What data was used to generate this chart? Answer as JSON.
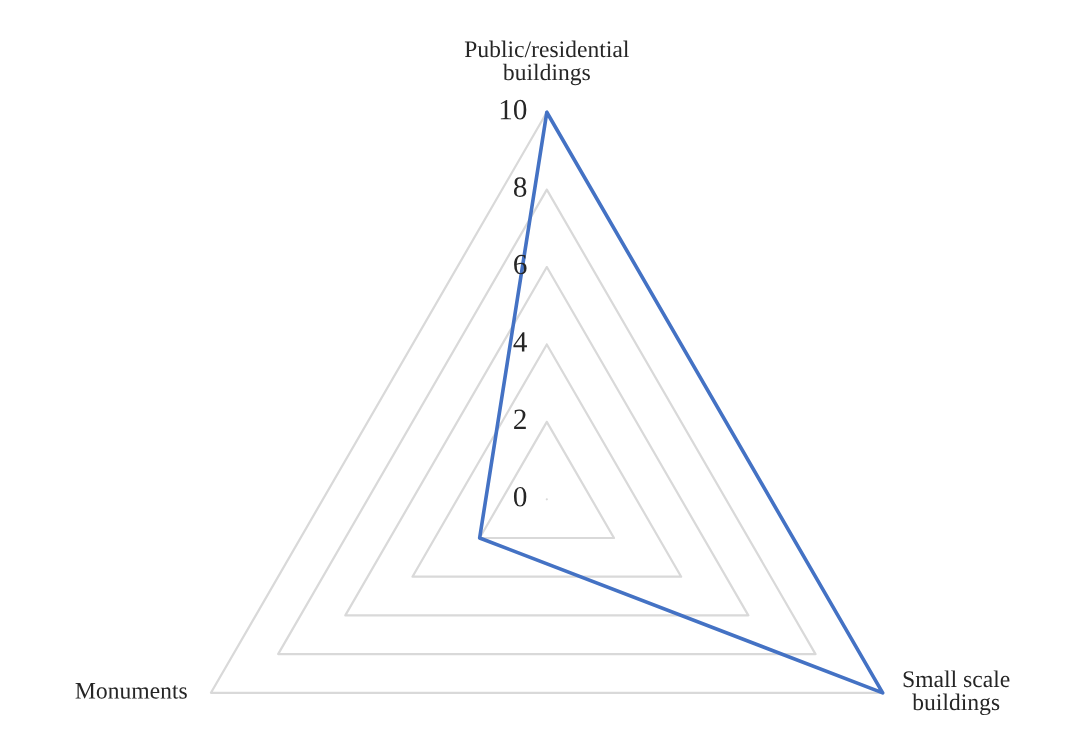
{
  "chart_data": {
    "type": "radar",
    "categories": [
      "Public/residential\nbuildings",
      "Small scale\nbuildings",
      "Monuments"
    ],
    "series": [
      {
        "color": "#4472c4",
        "values": [
          10,
          10,
          2
        ]
      }
    ],
    "ylim": [
      0,
      10
    ],
    "yticks": [
      0,
      2,
      4,
      6,
      8,
      10
    ],
    "grid": true,
    "marker": "none",
    "line_style": "solid"
  }
}
